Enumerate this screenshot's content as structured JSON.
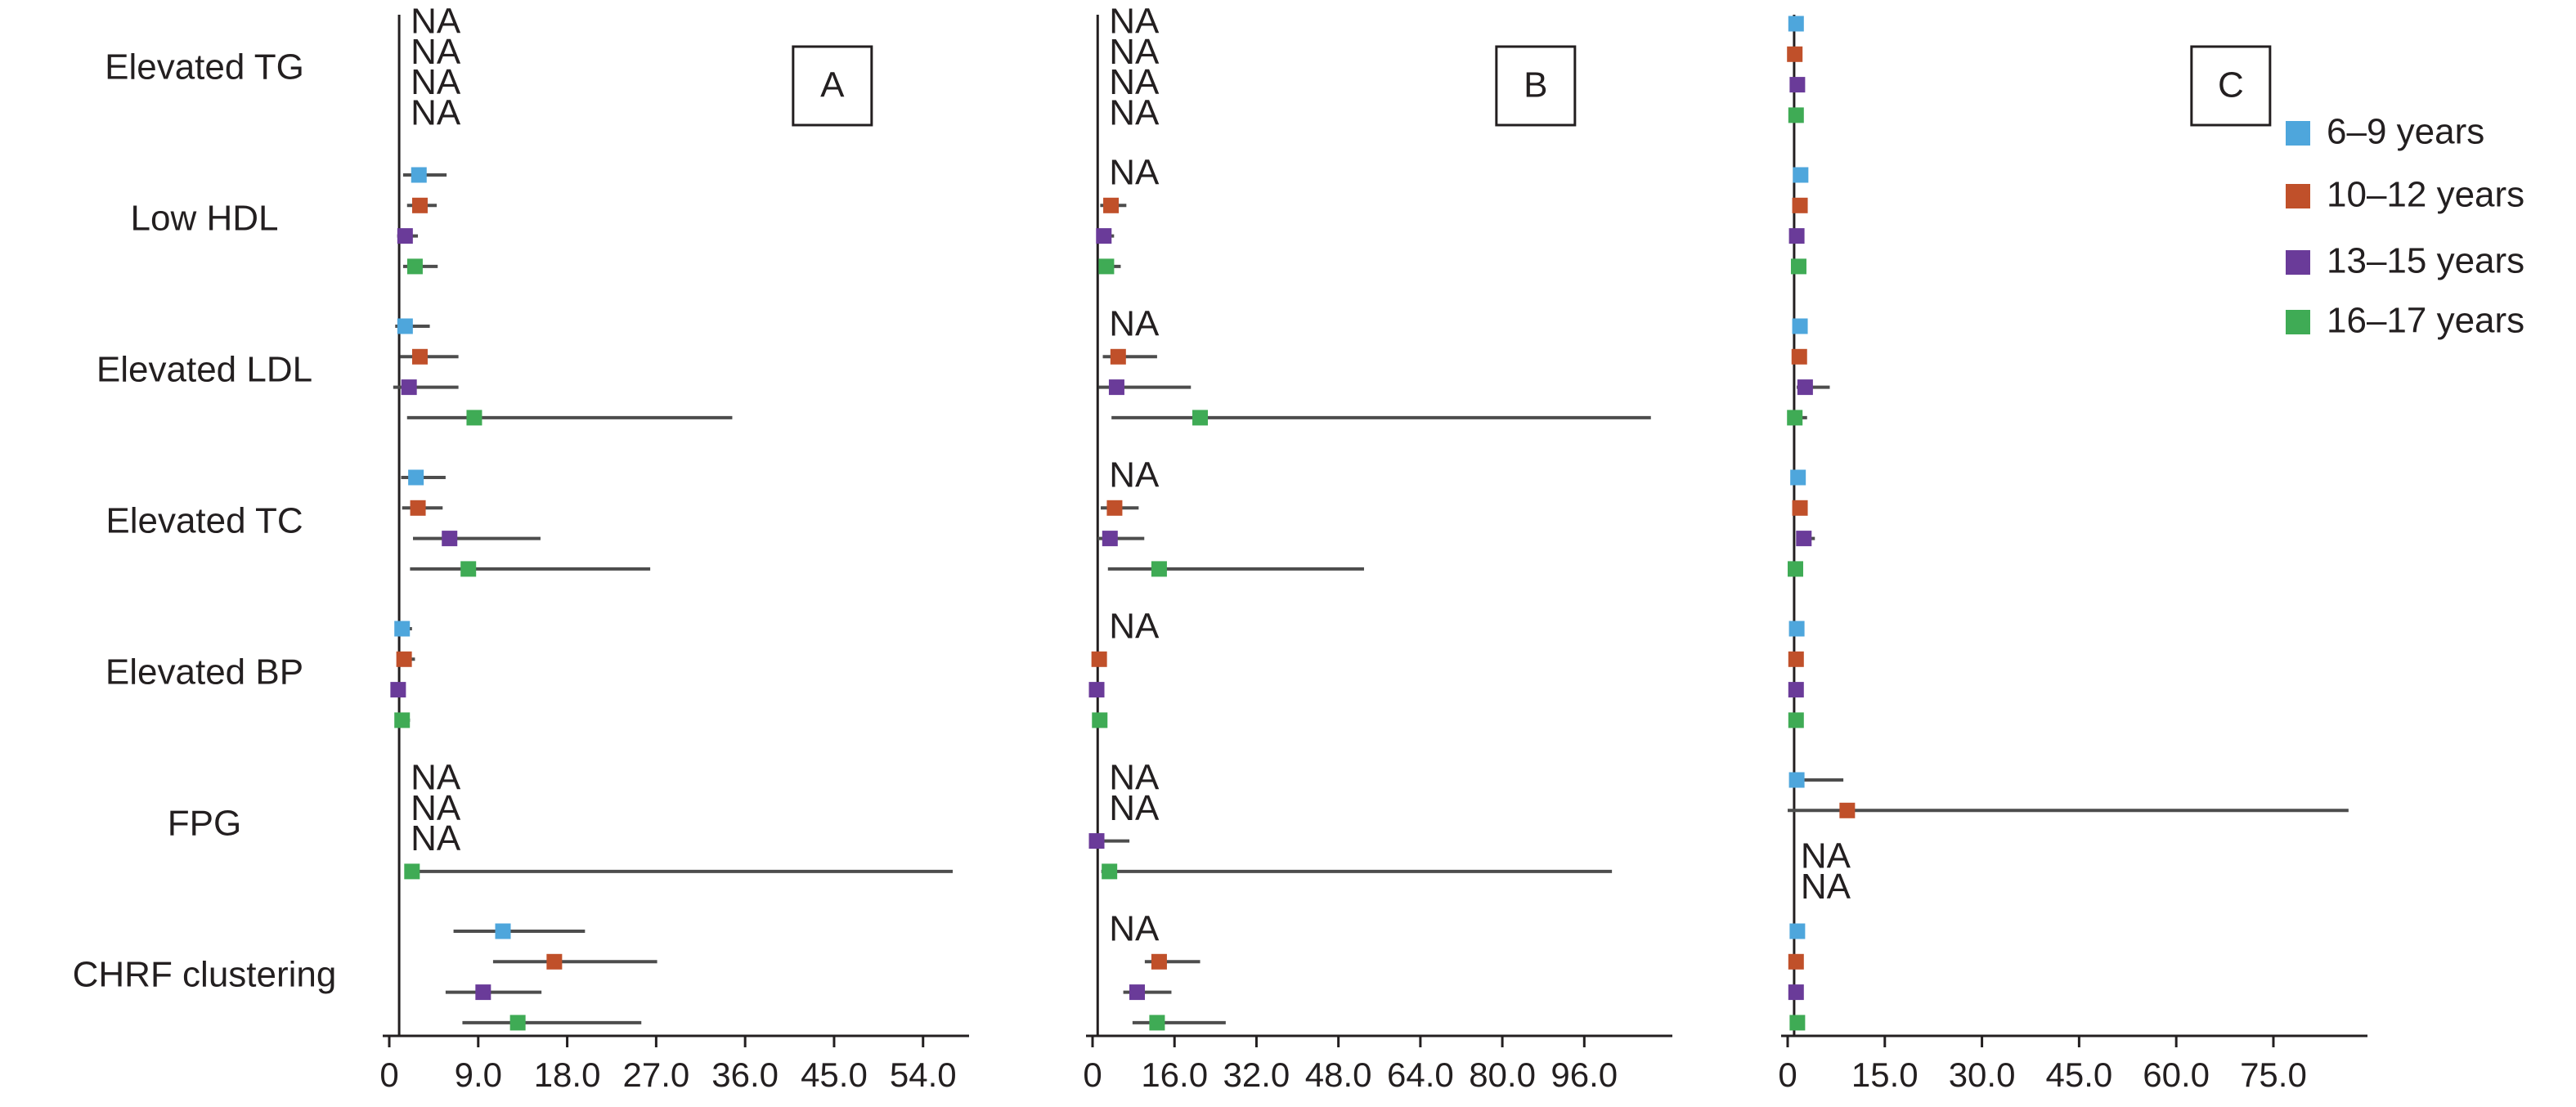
{
  "chart_data": {
    "type": "forest",
    "categories": [
      "Elevated TG",
      "Low HDL",
      "Elevated LDL",
      "Elevated TC",
      "Elevated BP",
      "FPG",
      "CHRF clustering"
    ],
    "na_label": "NA",
    "legend": {
      "position": "top-right",
      "items": [
        {
          "name": "6–9 years",
          "color": "#4ea6dc"
        },
        {
          "name": "10–12 years",
          "color": "#c0502a"
        },
        {
          "name": "13–15 years",
          "color": "#6a3b99"
        },
        {
          "name": "16–17 years",
          "color": "#3fab55"
        }
      ]
    },
    "panels": [
      {
        "label": "A",
        "xlim": [
          0,
          57
        ],
        "ticks": [
          0,
          9,
          18,
          27,
          36,
          45,
          54
        ],
        "tick_labels": [
          "0",
          "9.0",
          "18.0",
          "27.0",
          "36.0",
          "45.0",
          "54.0"
        ],
        "na_labels": [
          {
            "category": "Elevated TG",
            "text": "NA"
          },
          {
            "category": "Elevated TG",
            "text": "NA"
          },
          {
            "category": "Elevated TG",
            "text": "NA"
          },
          {
            "category": "Elevated TG",
            "text": "NA"
          },
          {
            "category": "FPG",
            "text": "NA"
          },
          {
            "category": "FPG",
            "text": "NA"
          },
          {
            "category": "FPG",
            "text": "NA"
          }
        ],
        "series": [
          {
            "name": "6–9 years",
            "points": [
              null,
              {
                "est": 3.0,
                "lo": 1.4,
                "hi": 5.8
              },
              {
                "est": 1.6,
                "lo": 0.6,
                "hi": 4.1
              },
              {
                "est": 2.7,
                "lo": 1.2,
                "hi": 5.7
              },
              {
                "est": 1.3,
                "lo": 0.7,
                "hi": 2.3
              },
              null,
              {
                "est": 11.5,
                "lo": 6.5,
                "hi": 19.8
              }
            ]
          },
          {
            "name": "10–12 years",
            "points": [
              null,
              {
                "est": 3.1,
                "lo": 1.8,
                "hi": 4.8
              },
              {
                "est": 3.1,
                "lo": 1.1,
                "hi": 7.0
              },
              {
                "est": 2.9,
                "lo": 1.3,
                "hi": 5.4
              },
              {
                "est": 1.5,
                "lo": 0.8,
                "hi": 2.6
              },
              null,
              {
                "est": 16.7,
                "lo": 10.5,
                "hi": 27.1
              }
            ]
          },
          {
            "name": "13–15 years",
            "points": [
              null,
              {
                "est": 1.6,
                "lo": 0.8,
                "hi": 2.9
              },
              {
                "est": 2.0,
                "lo": 0.4,
                "hi": 7.0
              },
              {
                "est": 6.1,
                "lo": 2.4,
                "hi": 15.3
              },
              {
                "est": 0.9,
                "lo": 0.4,
                "hi": 1.6
              },
              null,
              {
                "est": 9.5,
                "lo": 5.7,
                "hi": 15.4
              }
            ]
          },
          {
            "name": "16–17 years",
            "points": [
              null,
              {
                "est": 2.6,
                "lo": 1.4,
                "hi": 4.9
              },
              {
                "est": 8.6,
                "lo": 1.8,
                "hi": 34.7
              },
              {
                "est": 8.0,
                "lo": 2.1,
                "hi": 26.4
              },
              {
                "est": 1.3,
                "lo": 0.7,
                "hi": 2.1
              },
              {
                "est": 2.3,
                "lo": 1.6,
                "hi": 57.0
              },
              {
                "est": 13.0,
                "lo": 7.4,
                "hi": 25.5
              }
            ]
          }
        ]
      },
      {
        "label": "B",
        "xlim": [
          0,
          110
        ],
        "ticks": [
          0,
          16,
          32,
          48,
          64,
          80,
          96
        ],
        "tick_labels": [
          "0",
          "16.0",
          "32.0",
          "48.0",
          "64.0",
          "80.0",
          "96.0"
        ],
        "na_labels": [
          {
            "category": "Elevated TG",
            "text": "NA"
          },
          {
            "category": "Elevated TG",
            "text": "NA"
          },
          {
            "category": "Elevated TG",
            "text": "NA"
          },
          {
            "category": "Elevated TG",
            "text": "NA"
          },
          {
            "category": "Low HDL",
            "text": "NA"
          },
          {
            "category": "Elevated LDL",
            "text": "NA"
          },
          {
            "category": "Elevated TC",
            "text": "NA"
          },
          {
            "category": "Elevated BP",
            "text": "NA"
          },
          {
            "category": "FPG",
            "text": "NA"
          },
          {
            "category": "FPG",
            "text": "NA"
          },
          {
            "category": "CHRF clustering",
            "text": "NA"
          }
        ],
        "series": [
          {
            "name": "6–9 years",
            "points": [
              null,
              null,
              null,
              null,
              null,
              null,
              null
            ]
          },
          {
            "name": "10–12 years",
            "points": [
              null,
              {
                "est": 3.6,
                "lo": 1.5,
                "hi": 6.6
              },
              {
                "est": 5.0,
                "lo": 2.0,
                "hi": 12.6
              },
              {
                "est": 4.3,
                "lo": 1.6,
                "hi": 9.0
              },
              {
                "est": 1.3,
                "lo": 0.6,
                "hi": 2.6
              },
              null,
              {
                "est": 13.0,
                "lo": 10.2,
                "hi": 21.0
              }
            ]
          },
          {
            "name": "13–15 years",
            "points": [
              null,
              {
                "est": 2.2,
                "lo": 0.9,
                "hi": 4.2
              },
              {
                "est": 4.7,
                "lo": 1.2,
                "hi": 19.2
              },
              {
                "est": 3.4,
                "lo": 1.0,
                "hi": 10.1
              },
              {
                "est": 0.8,
                "lo": 0.3,
                "hi": 1.6
              },
              {
                "est": 0.8,
                "lo": 0.3,
                "hi": 7.2
              },
              {
                "est": 8.7,
                "lo": 6.0,
                "hi": 15.4
              }
            ]
          },
          {
            "name": "16–17 years",
            "points": [
              null,
              {
                "est": 2.7,
                "lo": 1.6,
                "hi": 5.5
              },
              {
                "est": 21.0,
                "lo": 3.7,
                "hi": 109.0
              },
              {
                "est": 13.0,
                "lo": 3.0,
                "hi": 53.0
              },
              {
                "est": 1.4,
                "lo": 0.8,
                "hi": 2.6
              },
              {
                "est": 3.3,
                "lo": 1.7,
                "hi": 101.4
              },
              {
                "est": 12.6,
                "lo": 7.8,
                "hi": 26.0
              }
            ]
          }
        ]
      },
      {
        "label": "C",
        "xlim": [
          0,
          87
        ],
        "ticks": [
          0,
          15,
          30,
          45,
          60,
          75
        ],
        "tick_labels": [
          "0",
          "15.0",
          "30.0",
          "45.0",
          "60.0",
          "75.0"
        ],
        "na_labels": [
          {
            "category": "FPG",
            "text": "NA"
          },
          {
            "category": "FPG",
            "text": "NA"
          }
        ],
        "series": [
          {
            "name": "6–9 years",
            "points": [
              {
                "est": 1.3,
                "lo": 1.0,
                "hi": 1.6
              },
              {
                "est": 2.0,
                "lo": 1.4,
                "hi": 2.8
              },
              {
                "est": 1.9,
                "lo": 1.3,
                "hi": 2.6
              },
              {
                "est": 1.6,
                "lo": 1.1,
                "hi": 2.3
              },
              {
                "est": 1.4,
                "lo": 0.9,
                "hi": 2.0
              },
              {
                "est": 1.4,
                "lo": 0.7,
                "hi": 8.6
              },
              {
                "est": 1.5,
                "lo": 1.1,
                "hi": 2.0
              }
            ]
          },
          {
            "name": "10–12 years",
            "points": [
              {
                "est": 1.1,
                "lo": 0.7,
                "hi": 1.5
              },
              {
                "est": 1.9,
                "lo": 1.3,
                "hi": 2.6
              },
              {
                "est": 1.8,
                "lo": 1.2,
                "hi": 2.7
              },
              {
                "est": 1.9,
                "lo": 1.2,
                "hi": 2.7
              },
              {
                "est": 1.3,
                "lo": 0.9,
                "hi": 1.9
              },
              {
                "est": 9.2,
                "lo": 0.0,
                "hi": 86.6
              },
              {
                "est": 1.3,
                "lo": 0.9,
                "hi": 1.9
              }
            ]
          },
          {
            "name": "13–15 years",
            "points": [
              {
                "est": 1.5,
                "lo": 1.0,
                "hi": 2.1
              },
              {
                "est": 1.4,
                "lo": 0.9,
                "hi": 2.0
              },
              {
                "est": 2.7,
                "lo": 1.4,
                "hi": 6.5
              },
              {
                "est": 2.5,
                "lo": 1.5,
                "hi": 4.2
              },
              {
                "est": 1.3,
                "lo": 0.8,
                "hi": 1.9
              },
              null,
              {
                "est": 1.3,
                "lo": 0.9,
                "hi": 1.9
              }
            ]
          },
          {
            "name": "16–17 years",
            "points": [
              {
                "est": 1.3,
                "lo": 0.9,
                "hi": 1.8
              },
              {
                "est": 1.7,
                "lo": 1.1,
                "hi": 2.4
              },
              {
                "est": 1.1,
                "lo": 0.5,
                "hi": 3.0
              },
              {
                "est": 1.2,
                "lo": 0.6,
                "hi": 2.3
              },
              {
                "est": 1.3,
                "lo": 0.8,
                "hi": 2.0
              },
              null,
              {
                "est": 1.5,
                "lo": 1.0,
                "hi": 2.2
              }
            ]
          }
        ]
      }
    ]
  }
}
